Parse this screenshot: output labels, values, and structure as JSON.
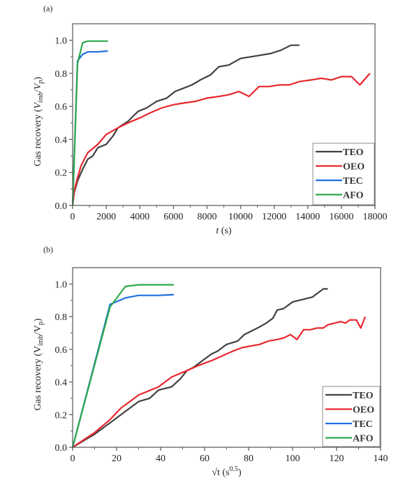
{
  "chart_data": [
    {
      "type": "line",
      "panel_label": "(a)",
      "title": "",
      "xlabel": "t (s)",
      "xlabel_italic_part": "t",
      "xlabel_rest": " (s)",
      "ylabel": "Gas recovery (V_imb/V_p)",
      "ylabel_prefix": "Gas recovery (",
      "ylabel_v1": "V",
      "ylabel_sub1": "imb",
      "ylabel_sep": "/",
      "ylabel_v2": "V",
      "ylabel_sub2": "p",
      "ylabel_suffix": ")",
      "xlim": [
        0,
        18000
      ],
      "ylim": [
        0,
        1.1
      ],
      "xticks": [
        0,
        2000,
        4000,
        6000,
        8000,
        10000,
        12000,
        14000,
        16000,
        18000
      ],
      "xtick_labels": [
        "0",
        "2000",
        "4000",
        "6000",
        "8000",
        "10000",
        "12000",
        "14000",
        "16000",
        "18000"
      ],
      "yticks": [
        0,
        0.2,
        0.4,
        0.6,
        0.8,
        1.0
      ],
      "ytick_labels": [
        "0.0",
        "0.2",
        "0.4",
        "0.6",
        "0.8",
        "1.0"
      ],
      "grid": false,
      "legend_position": "bottom-right",
      "series": [
        {
          "name": "TEO",
          "color": "#404040",
          "x": [
            0,
            100,
            300,
            600,
            900,
            1200,
            1500,
            2000,
            2400,
            2700,
            3000,
            3300,
            3600,
            3900,
            4400,
            5000,
            5600,
            6100,
            6600,
            7100,
            7600,
            8200,
            8700,
            9300,
            10000,
            10600,
            11200,
            11800,
            12400,
            13000,
            13500
          ],
          "y": [
            0,
            0.08,
            0.15,
            0.22,
            0.28,
            0.3,
            0.35,
            0.37,
            0.42,
            0.47,
            0.49,
            0.51,
            0.54,
            0.57,
            0.59,
            0.63,
            0.65,
            0.69,
            0.71,
            0.73,
            0.76,
            0.79,
            0.84,
            0.85,
            0.89,
            0.9,
            0.91,
            0.92,
            0.94,
            0.97,
            0.97
          ]
        },
        {
          "name": "OEO",
          "color": "#e8272e",
          "x": [
            0,
            100,
            300,
            500,
            900,
            1500,
            2000,
            2700,
            3300,
            4000,
            4600,
            5300,
            6000,
            6600,
            7300,
            8000,
            8700,
            9300,
            9900,
            10500,
            11100,
            11700,
            12300,
            12900,
            13500,
            14200,
            14800,
            15400,
            16000,
            16600,
            17100,
            17700
          ],
          "y": [
            0,
            0.09,
            0.17,
            0.24,
            0.32,
            0.37,
            0.43,
            0.47,
            0.5,
            0.53,
            0.56,
            0.59,
            0.61,
            0.62,
            0.63,
            0.65,
            0.66,
            0.67,
            0.69,
            0.66,
            0.72,
            0.72,
            0.73,
            0.73,
            0.75,
            0.76,
            0.77,
            0.76,
            0.78,
            0.78,
            0.73,
            0.8
          ]
        },
        {
          "name": "TEC",
          "color": "#1f6fe0",
          "x": [
            0,
            290,
            600,
            900,
            1500,
            2100
          ],
          "y": [
            0,
            0.875,
            0.915,
            0.93,
            0.93,
            0.935
          ]
        },
        {
          "name": "AFO",
          "color": "#2ca84a",
          "x": [
            0,
            290,
            600,
            900,
            1500,
            2100
          ],
          "y": [
            0,
            0.86,
            0.985,
            0.995,
            0.995,
            0.995
          ]
        }
      ]
    },
    {
      "type": "line",
      "panel_label": "(b)",
      "title": "",
      "xlabel": "√t (s^0.5)",
      "xlabel_main": "√t (s",
      "xlabel_sup": "0.5",
      "xlabel_end": ")",
      "ylabel": "Gas recovery (V_imb/V_p)",
      "ylabel_prefix": "Gas recovery (V",
      "ylabel_sub1": "imb",
      "ylabel_mid": "/V",
      "ylabel_sub2": "p",
      "ylabel_suffix": ")",
      "xlim": [
        0,
        140
      ],
      "ylim": [
        0,
        1.1
      ],
      "xticks": [
        0,
        20,
        40,
        60,
        80,
        100,
        120,
        140
      ],
      "xtick_labels": [
        "0",
        "20",
        "40",
        "60",
        "80",
        "100",
        "120",
        "140"
      ],
      "yticks": [
        0,
        0.2,
        0.4,
        0.6,
        0.8,
        1.0
      ],
      "ytick_labels": [
        "0.0",
        "0.2",
        "0.4",
        "0.6",
        "0.8",
        "1.0"
      ],
      "grid": false,
      "legend_position": "bottom-right",
      "series": [
        {
          "name": "TEO",
          "color": "#404040",
          "x": [
            0,
            10,
            17,
            24,
            30,
            35,
            39,
            45,
            49,
            52,
            55,
            57,
            60,
            63,
            66,
            70,
            75,
            78,
            81,
            84,
            88,
            91,
            93,
            96,
            100,
            103,
            106,
            109,
            111,
            114,
            116
          ],
          "y": [
            0,
            0.08,
            0.15,
            0.22,
            0.28,
            0.3,
            0.35,
            0.37,
            0.42,
            0.47,
            0.49,
            0.51,
            0.54,
            0.57,
            0.59,
            0.63,
            0.65,
            0.69,
            0.71,
            0.73,
            0.76,
            0.79,
            0.84,
            0.85,
            0.89,
            0.9,
            0.91,
            0.92,
            0.94,
            0.97,
            0.97
          ]
        },
        {
          "name": "OEO",
          "color": "#e8272e",
          "x": [
            0,
            10,
            17,
            22,
            30,
            39,
            45,
            52,
            57,
            63,
            68,
            73,
            77,
            81,
            85,
            89,
            93,
            96,
            99,
            102,
            105,
            108,
            111,
            114,
            116,
            119,
            122,
            124,
            126,
            129,
            131,
            133
          ],
          "y": [
            0,
            0.09,
            0.17,
            0.24,
            0.32,
            0.37,
            0.43,
            0.47,
            0.5,
            0.53,
            0.56,
            0.59,
            0.61,
            0.62,
            0.63,
            0.65,
            0.66,
            0.67,
            0.69,
            0.66,
            0.72,
            0.72,
            0.73,
            0.73,
            0.75,
            0.76,
            0.77,
            0.76,
            0.78,
            0.78,
            0.73,
            0.8
          ]
        },
        {
          "name": "TEC",
          "color": "#1f6fe0",
          "x": [
            0,
            17,
            24,
            30,
            39,
            46
          ],
          "y": [
            0,
            0.875,
            0.915,
            0.93,
            0.93,
            0.935
          ]
        },
        {
          "name": "AFO",
          "color": "#2ca84a",
          "x": [
            0,
            17,
            24,
            30,
            39,
            46
          ],
          "y": [
            0,
            0.86,
            0.985,
            0.995,
            0.995,
            0.995
          ]
        }
      ]
    }
  ]
}
